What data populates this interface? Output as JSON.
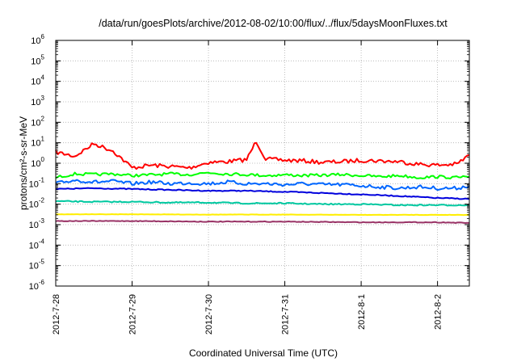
{
  "chart_data": {
    "type": "line",
    "title": "/data/run/goesPlots/archive/2012-08-02/10:00/flux/../flux/5daysMoonFluxes.txt",
    "xlabel": "Coordinated Universal Time (UTC)",
    "ylabel": "protons/cm²-s-sr-MeV",
    "yscale": "log",
    "ylim": [
      1e-06,
      1000000.0
    ],
    "xlim": [
      "2012-07-28",
      "2012-08-02 10:00"
    ],
    "grid": true,
    "legend": "none",
    "x_ticks": [
      "2012-7-28",
      "2012-7-29",
      "2012-7-30",
      "2012-7-31",
      "2012-8-1",
      "2012-8-2"
    ],
    "y_ticks": [
      {
        "base": "10",
        "exp": "-6"
      },
      {
        "base": "10",
        "exp": "-5"
      },
      {
        "base": "10",
        "exp": "-4"
      },
      {
        "base": "10",
        "exp": "-3"
      },
      {
        "base": "10",
        "exp": "-2"
      },
      {
        "base": "10",
        "exp": "-1"
      },
      {
        "base": "10",
        "exp": "0"
      },
      {
        "base": "10",
        "exp": "1"
      },
      {
        "base": "10",
        "exp": "2"
      },
      {
        "base": "10",
        "exp": "3"
      },
      {
        "base": "10",
        "exp": "4"
      },
      {
        "base": "10",
        "exp": "5"
      },
      {
        "base": "10",
        "exp": "6"
      }
    ],
    "series": [
      {
        "color": "#ff0000",
        "x": [
          "2012-07-28 00:00",
          "2012-07-28 06:00",
          "2012-07-28 12:00",
          "2012-07-28 18:00",
          "2012-07-29 00:00",
          "2012-07-29 06:00",
          "2012-07-29 12:00",
          "2012-07-29 18:00",
          "2012-07-30 00:00",
          "2012-07-30 06:00",
          "2012-07-30 12:00",
          "2012-07-30 15:00",
          "2012-07-30 18:00",
          "2012-07-31 00:00",
          "2012-07-31 06:00",
          "2012-07-31 12:00",
          "2012-07-31 18:00",
          "2012-08-01 00:00",
          "2012-08-01 06:00",
          "2012-08-01 12:00",
          "2012-08-01 18:00",
          "2012-08-02 00:00",
          "2012-08-02 06:00",
          "2012-08-02 10:00"
        ],
        "values": [
          3.5,
          2.2,
          9,
          4,
          0.6,
          0.8,
          0.7,
          0.6,
          1.1,
          1.2,
          1.5,
          12,
          1.6,
          1.4,
          1.3,
          1.1,
          1.2,
          1.4,
          1.3,
          1.2,
          0.9,
          0.8,
          0.9,
          2.5
        ]
      },
      {
        "color": "#00ff00",
        "x": [
          "2012-07-28 00:00",
          "2012-07-28 06:00",
          "2012-07-28 12:00",
          "2012-07-28 18:00",
          "2012-07-29 00:00",
          "2012-07-29 06:00",
          "2012-07-29 12:00",
          "2012-07-29 18:00",
          "2012-07-30 00:00",
          "2012-07-30 06:00",
          "2012-07-30 12:00",
          "2012-07-30 18:00",
          "2012-07-31 00:00",
          "2012-07-31 06:00",
          "2012-07-31 12:00",
          "2012-07-31 18:00",
          "2012-08-01 00:00",
          "2012-08-01 06:00",
          "2012-08-01 12:00",
          "2012-08-01 18:00",
          "2012-08-02 00:00",
          "2012-08-02 06:00",
          "2012-08-02 10:00"
        ],
        "values": [
          0.2,
          0.3,
          0.28,
          0.3,
          0.25,
          0.27,
          0.3,
          0.28,
          0.35,
          0.3,
          0.28,
          0.25,
          0.27,
          0.25,
          0.26,
          0.28,
          0.25,
          0.22,
          0.25,
          0.2,
          0.22,
          0.2,
          0.22
        ]
      },
      {
        "color": "#0066ff",
        "x": [
          "2012-07-28 00:00",
          "2012-07-28 06:00",
          "2012-07-28 12:00",
          "2012-07-28 18:00",
          "2012-07-29 00:00",
          "2012-07-29 06:00",
          "2012-07-29 12:00",
          "2012-07-29 18:00",
          "2012-07-30 00:00",
          "2012-07-30 06:00",
          "2012-07-30 12:00",
          "2012-07-30 18:00",
          "2012-07-31 00:00",
          "2012-07-31 06:00",
          "2012-07-31 12:00",
          "2012-07-31 18:00",
          "2012-08-01 00:00",
          "2012-08-01 06:00",
          "2012-08-01 12:00",
          "2012-08-01 18:00",
          "2012-08-02 00:00",
          "2012-08-02 06:00",
          "2012-08-02 10:00"
        ],
        "values": [
          0.1,
          0.15,
          0.12,
          0.13,
          0.1,
          0.12,
          0.1,
          0.11,
          0.1,
          0.12,
          0.1,
          0.1,
          0.09,
          0.1,
          0.09,
          0.09,
          0.08,
          0.07,
          0.06,
          0.07,
          0.06,
          0.06,
          0.08
        ]
      },
      {
        "color": "#0000dd",
        "x": [
          "2012-07-28 00:00",
          "2012-07-28 12:00",
          "2012-07-29 00:00",
          "2012-07-29 12:00",
          "2012-07-30 00:00",
          "2012-07-30 12:00",
          "2012-07-31 00:00",
          "2012-07-31 12:00",
          "2012-08-01 00:00",
          "2012-08-01 12:00",
          "2012-08-02 00:00",
          "2012-08-02 10:00"
        ],
        "values": [
          0.055,
          0.06,
          0.055,
          0.05,
          0.045,
          0.045,
          0.04,
          0.035,
          0.03,
          0.025,
          0.02,
          0.018
        ]
      },
      {
        "color": "#00c8a0",
        "x": [
          "2012-07-28 00:00",
          "2012-07-28 12:00",
          "2012-07-29 00:00",
          "2012-07-29 12:00",
          "2012-07-30 00:00",
          "2012-07-30 12:00",
          "2012-07-31 00:00",
          "2012-07-31 12:00",
          "2012-08-01 00:00",
          "2012-08-01 12:00",
          "2012-08-02 00:00",
          "2012-08-02 10:00"
        ],
        "values": [
          0.014,
          0.013,
          0.013,
          0.012,
          0.012,
          0.011,
          0.011,
          0.01,
          0.01,
          0.009,
          0.009,
          0.009
        ]
      },
      {
        "color": "#ffee00",
        "x": [
          "2012-07-28 00:00",
          "2012-07-29 00:00",
          "2012-07-30 00:00",
          "2012-07-31 00:00",
          "2012-08-01 00:00",
          "2012-08-02 00:00",
          "2012-08-02 10:00"
        ],
        "values": [
          0.0032,
          0.0032,
          0.0031,
          0.0031,
          0.003,
          0.003,
          0.003
        ]
      },
      {
        "color": "#993366",
        "x": [
          "2012-07-28 00:00",
          "2012-07-29 00:00",
          "2012-07-30 00:00",
          "2012-07-31 00:00",
          "2012-08-01 00:00",
          "2012-08-02 00:00",
          "2012-08-02 10:00"
        ],
        "values": [
          0.0015,
          0.0015,
          0.0014,
          0.0014,
          0.0013,
          0.0013,
          0.0012
        ]
      }
    ]
  }
}
